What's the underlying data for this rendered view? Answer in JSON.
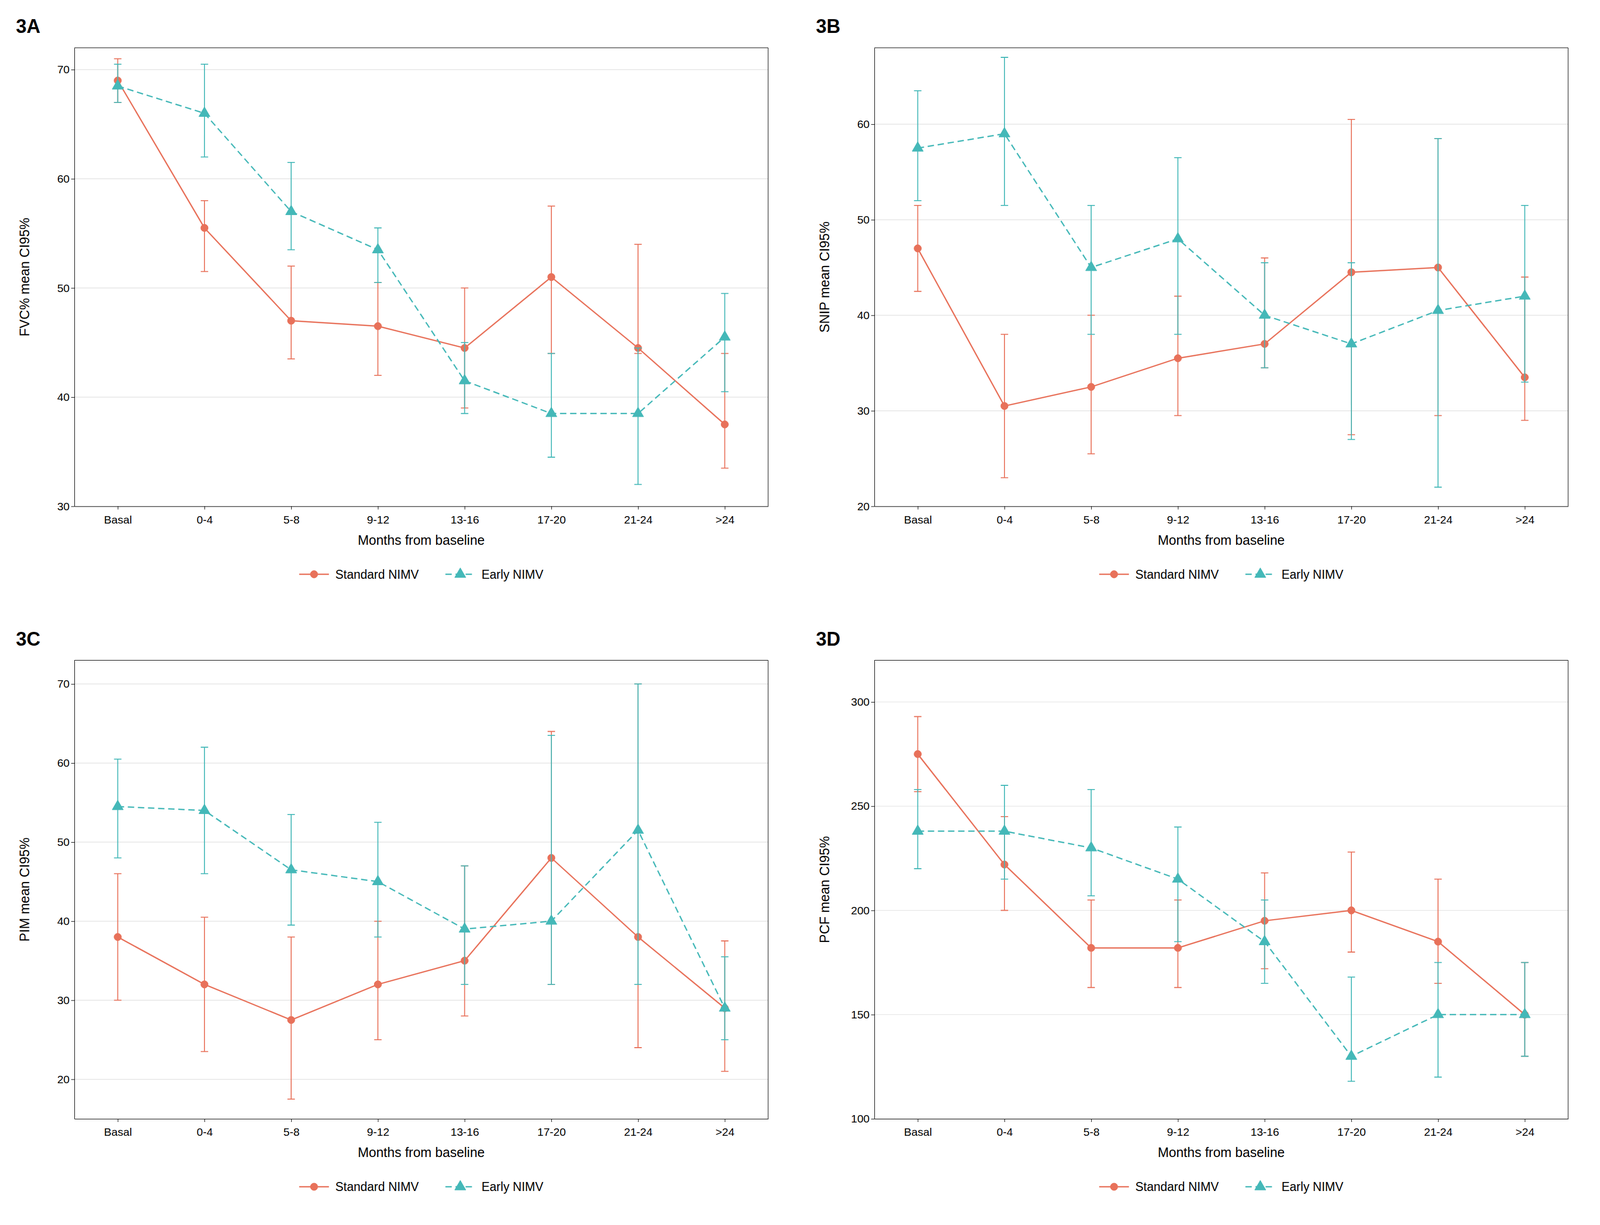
{
  "chart_data": [
    {
      "type": "line",
      "title": "3A",
      "ylabel": "FVC% mean CI95%",
      "xlabel": "Months from baseline",
      "categories": [
        "Basal",
        "0-4",
        "5-8",
        "9-12",
        "13-16",
        "17-20",
        "21-24",
        ">24"
      ],
      "ylim": [
        30,
        72
      ],
      "yticks": [
        30,
        40,
        50,
        60,
        70
      ],
      "grid": true,
      "legend": "bottom",
      "series": [
        {
          "name": "Standard NIMV",
          "color": "#e8715a",
          "marker": "circle",
          "line_style": "solid",
          "values": [
            69.0,
            55.5,
            47.0,
            46.5,
            44.5,
            51.0,
            44.5,
            37.5
          ],
          "lower": [
            67.0,
            51.5,
            43.5,
            42.0,
            39.0,
            44.0,
            44.0,
            33.5
          ],
          "upper": [
            71.0,
            58.0,
            52.0,
            50.5,
            50.0,
            57.5,
            54.0,
            44.0
          ]
        },
        {
          "name": "Early NIMV",
          "color": "#44b8b8",
          "marker": "triangle",
          "line_style": "dashed",
          "values": [
            68.5,
            66.0,
            57.0,
            53.5,
            41.5,
            38.5,
            38.5,
            45.5
          ],
          "lower": [
            67.0,
            62.0,
            53.5,
            50.5,
            38.5,
            34.5,
            32.0,
            40.5
          ],
          "upper": [
            70.5,
            70.5,
            61.5,
            55.5,
            45.0,
            44.0,
            44.5,
            49.5
          ]
        }
      ]
    },
    {
      "type": "line",
      "title": "3B",
      "ylabel": "SNIP mean CI95%",
      "xlabel": "Months from baseline",
      "categories": [
        "Basal",
        "0-4",
        "5-8",
        "9-12",
        "13-16",
        "17-20",
        "21-24",
        ">24"
      ],
      "ylim": [
        20,
        68
      ],
      "yticks": [
        20,
        30,
        40,
        50,
        60
      ],
      "grid": true,
      "legend": "bottom",
      "series": [
        {
          "name": "Standard NIMV",
          "color": "#e8715a",
          "marker": "circle",
          "line_style": "solid",
          "values": [
            47.0,
            30.5,
            32.5,
            35.5,
            37.0,
            44.5,
            45.0,
            33.5
          ],
          "lower": [
            42.5,
            23.0,
            25.5,
            29.5,
            34.5,
            27.5,
            29.5,
            29.0
          ],
          "upper": [
            51.5,
            38.0,
            40.0,
            42.0,
            46.0,
            60.5,
            58.5,
            44.0
          ]
        },
        {
          "name": "Early NIMV",
          "color": "#44b8b8",
          "marker": "triangle",
          "line_style": "dashed",
          "values": [
            57.5,
            59.0,
            45.0,
            48.0,
            40.0,
            37.0,
            40.5,
            42.0
          ],
          "lower": [
            52.0,
            51.5,
            38.0,
            38.0,
            34.5,
            27.0,
            22.0,
            33.0
          ],
          "upper": [
            63.5,
            67.0,
            51.5,
            56.5,
            45.5,
            45.5,
            58.5,
            51.5
          ]
        }
      ]
    },
    {
      "type": "line",
      "title": "3C",
      "ylabel": "PIM mean CI95%",
      "xlabel": "Months from baseline",
      "categories": [
        "Basal",
        "0-4",
        "5-8",
        "9-12",
        "13-16",
        "17-20",
        "21-24",
        ">24"
      ],
      "ylim": [
        15,
        73
      ],
      "yticks": [
        20,
        30,
        40,
        50,
        60,
        70
      ],
      "grid": true,
      "legend": "bottom",
      "series": [
        {
          "name": "Standard NIMV",
          "color": "#e8715a",
          "marker": "circle",
          "line_style": "solid",
          "values": [
            38.0,
            32.0,
            27.5,
            32.0,
            35.0,
            48.0,
            38.0,
            29.0
          ],
          "lower": [
            30.0,
            23.5,
            17.5,
            25.0,
            28.0,
            32.0,
            24.0,
            21.0
          ],
          "upper": [
            46.0,
            40.5,
            38.0,
            40.0,
            47.0,
            64.0,
            70.0,
            37.5
          ]
        },
        {
          "name": "Early NIMV",
          "color": "#44b8b8",
          "marker": "triangle",
          "line_style": "dashed",
          "values": [
            54.5,
            54.0,
            46.5,
            45.0,
            39.0,
            40.0,
            51.5,
            29.0
          ],
          "lower": [
            48.0,
            46.0,
            39.5,
            38.0,
            32.0,
            32.0,
            32.0,
            25.0
          ],
          "upper": [
            60.5,
            62.0,
            53.5,
            52.5,
            47.0,
            63.5,
            70.0,
            35.5
          ]
        }
      ]
    },
    {
      "type": "line",
      "title": "3D",
      "ylabel": "PCF mean CI95%",
      "xlabel": "Months from baseline",
      "categories": [
        "Basal",
        "0-4",
        "5-8",
        "9-12",
        "13-16",
        "17-20",
        "21-24",
        ">24"
      ],
      "ylim": [
        100,
        320
      ],
      "yticks": [
        100,
        150,
        200,
        250,
        300
      ],
      "grid": true,
      "legend": "bottom",
      "series": [
        {
          "name": "Standard NIMV",
          "color": "#e8715a",
          "marker": "circle",
          "line_style": "solid",
          "values": [
            275.0,
            222.0,
            182.0,
            182.0,
            195.0,
            200.0,
            185.0,
            150.0
          ],
          "lower": [
            257.0,
            200.0,
            163.0,
            163.0,
            172.0,
            180.0,
            165.0,
            130.0
          ],
          "upper": [
            293.0,
            245.0,
            205.0,
            205.0,
            218.0,
            228.0,
            215.0,
            175.0
          ]
        },
        {
          "name": "Early NIMV",
          "color": "#44b8b8",
          "marker": "triangle",
          "line_style": "dashed",
          "values": [
            238.0,
            238.0,
            230.0,
            215.0,
            185.0,
            130.0,
            150.0,
            150.0
          ],
          "lower": [
            220.0,
            215.0,
            207.0,
            185.0,
            165.0,
            118.0,
            120.0,
            130.0
          ],
          "upper": [
            258.0,
            260.0,
            258.0,
            240.0,
            205.0,
            168.0,
            175.0,
            175.0
          ]
        }
      ]
    }
  ]
}
